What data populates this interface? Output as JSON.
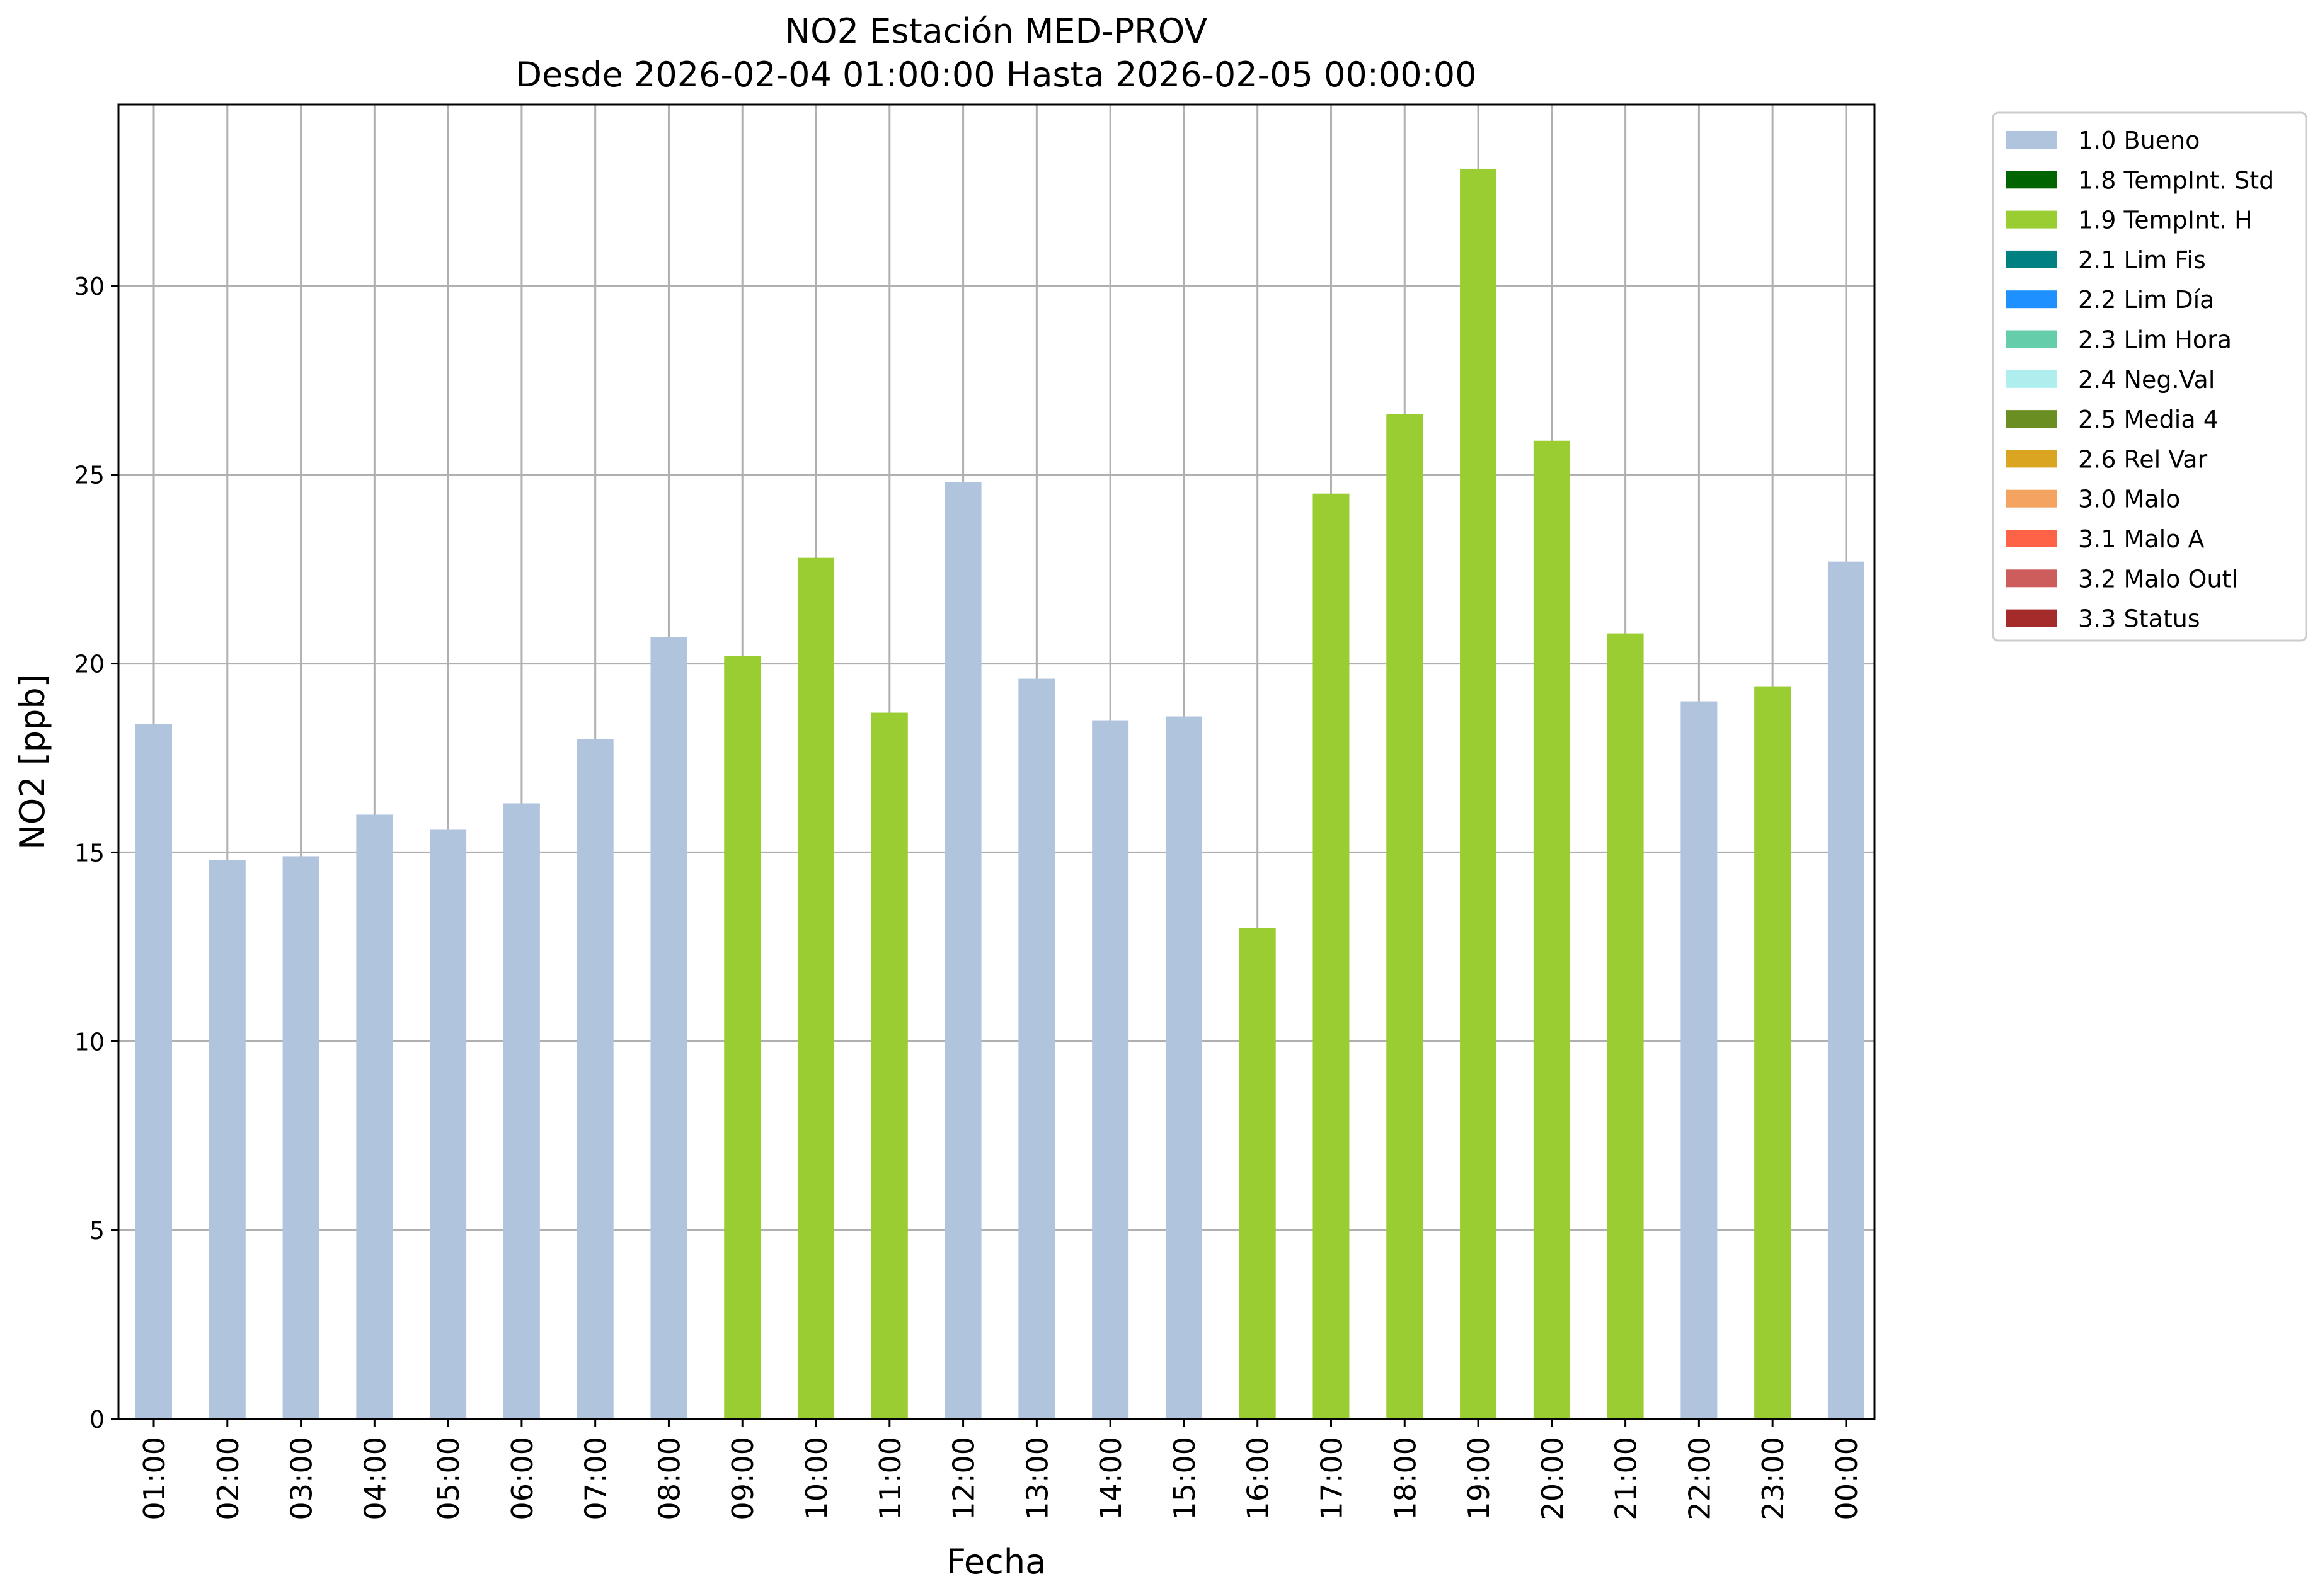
{
  "chart_data": {
    "type": "bar",
    "title": "NO2 Estación MED-PROV",
    "subtitle": "Desde 2026-02-04 01:00:00 Hasta 2026-02-05 00:00:00",
    "xlabel": "Fecha",
    "ylabel": "NO2 [ppb]",
    "ylim": [
      0,
      34.8
    ],
    "yticks": [
      0,
      5,
      10,
      15,
      20,
      25,
      30
    ],
    "grid": true,
    "legend_position": "outside-top-right",
    "categories": [
      "01:00",
      "02:00",
      "03:00",
      "04:00",
      "05:00",
      "06:00",
      "07:00",
      "08:00",
      "09:00",
      "10:00",
      "11:00",
      "12:00",
      "13:00",
      "14:00",
      "15:00",
      "16:00",
      "17:00",
      "18:00",
      "19:00",
      "20:00",
      "21:00",
      "22:00",
      "23:00",
      "00:00"
    ],
    "values": [
      18.4,
      14.8,
      14.9,
      16.0,
      15.6,
      16.3,
      18.0,
      20.7,
      20.2,
      22.8,
      18.7,
      24.8,
      19.6,
      18.5,
      18.6,
      13.0,
      24.5,
      26.6,
      33.1,
      25.9,
      20.8,
      19.0,
      19.4,
      22.7
    ],
    "flags": [
      "1.0 Bueno",
      "1.0 Bueno",
      "1.0 Bueno",
      "1.0 Bueno",
      "1.0 Bueno",
      "1.0 Bueno",
      "1.0 Bueno",
      "1.0 Bueno",
      "1.9 TempInt. H",
      "1.9 TempInt. H",
      "1.9 TempInt. H",
      "1.0 Bueno",
      "1.0 Bueno",
      "1.0 Bueno",
      "1.0 Bueno",
      "1.9 TempInt. H",
      "1.9 TempInt. H",
      "1.9 TempInt. H",
      "1.9 TempInt. H",
      "1.9 TempInt. H",
      "1.9 TempInt. H",
      "1.0 Bueno",
      "1.9 TempInt. H",
      "1.0 Bueno"
    ],
    "legend": [
      {
        "label": "1.0 Bueno",
        "color": "#b0c4de"
      },
      {
        "label": "1.8 TempInt. Std",
        "color": "#006400"
      },
      {
        "label": "1.9 TempInt. H",
        "color": "#9acd32"
      },
      {
        "label": "2.1 Lim Fis",
        "color": "#008080"
      },
      {
        "label": "2.2 Lim Día",
        "color": "#1e90ff"
      },
      {
        "label": "2.3 Lim Hora",
        "color": "#66cdaa"
      },
      {
        "label": "2.4 Neg.Val",
        "color": "#afeeee"
      },
      {
        "label": "2.5 Media 4",
        "color": "#6b8e23"
      },
      {
        "label": "2.6 Rel Var",
        "color": "#daa520"
      },
      {
        "label": "3.0 Malo",
        "color": "#f4a460"
      },
      {
        "label": "3.1 Malo A",
        "color": "#ff6347"
      },
      {
        "label": "3.2 Malo Outl",
        "color": "#cd5c5c"
      },
      {
        "label": "3.3 Status",
        "color": "#a52a2a"
      }
    ]
  }
}
